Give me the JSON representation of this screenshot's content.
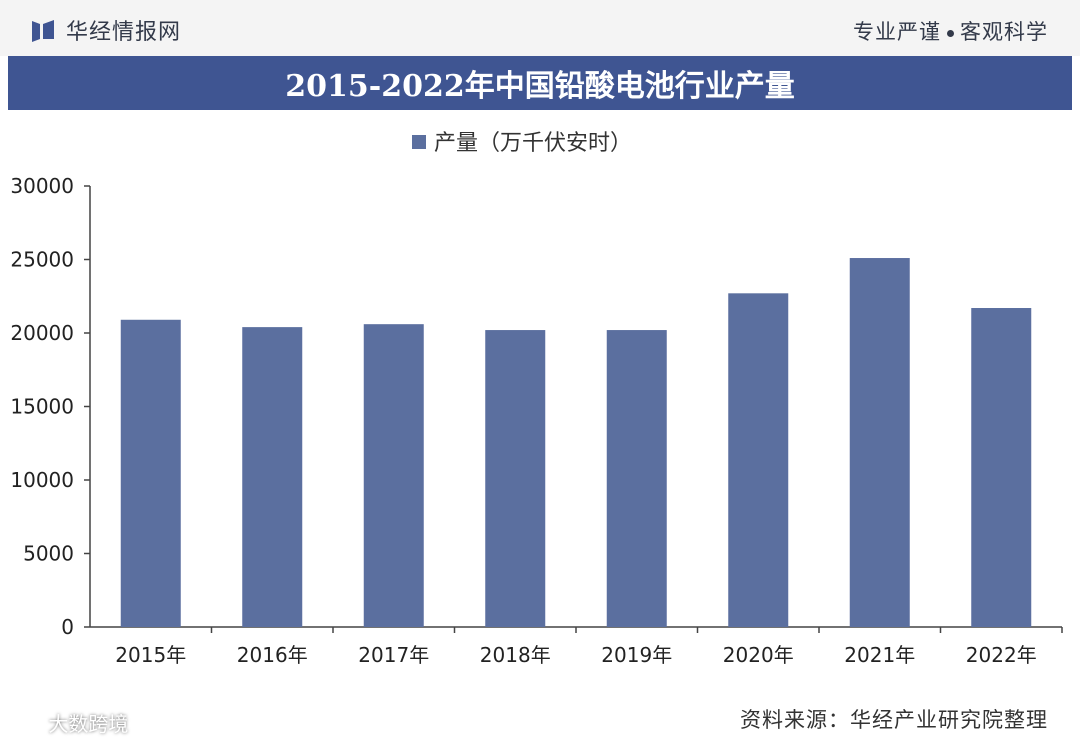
{
  "header": {
    "brand": "华经情报网",
    "slogan_left": "专业严谨",
    "slogan_right": "客观科学"
  },
  "chart_data": {
    "type": "bar",
    "title": "2015-2022年中国铅酸电池行业产量",
    "categories": [
      "2015年",
      "2016年",
      "2017年",
      "2018年",
      "2019年",
      "2020年",
      "2021年",
      "2022年"
    ],
    "series": [
      {
        "name": "产量（万千伏安时）",
        "values": [
          20900,
          20400,
          20600,
          20200,
          20200,
          22700,
          25100,
          21700
        ]
      }
    ],
    "ylim": [
      0,
      30000
    ],
    "yticks": [
      0,
      5000,
      10000,
      15000,
      20000,
      25000,
      30000
    ],
    "grid": false,
    "legend": "top-center",
    "bar_color": "#5b6f9f"
  },
  "footer": {
    "source": "资料来源：华经产业研究院整理",
    "mark": "大数跨境"
  },
  "colors": {
    "title_bar": "#3f5592",
    "bar": "#5b6f9f"
  }
}
